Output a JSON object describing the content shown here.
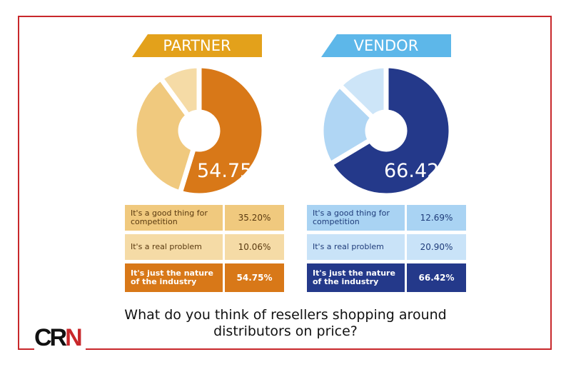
{
  "title": "What do you think of resellers shopping around distributors on price?",
  "logo": "CRN",
  "chart_data": [
    {
      "type": "pie",
      "title": "PARTNER",
      "center_label": "54.75",
      "center_unit": "%",
      "slices": [
        {
          "label": "It's just the nature of the industry",
          "value": 54.75,
          "display": "54.75%",
          "color": "#d87818"
        },
        {
          "label": "It's a good thing for competition",
          "value": 35.2,
          "display": "35.20%",
          "color": "#f0c97e"
        },
        {
          "label": "It's a real problem",
          "value": 10.06,
          "display": "10.06%",
          "color": "#f5dba6"
        }
      ],
      "header_color": "#e3a11b"
    },
    {
      "type": "pie",
      "title": "VENDOR",
      "center_label": "66.42",
      "center_unit": "%",
      "slices": [
        {
          "label": "It's just the nature of the industry",
          "value": 66.42,
          "display": "66.42%",
          "color": "#24398a"
        },
        {
          "label": "It's a real problem",
          "value": 20.9,
          "display": "20.90%",
          "color": "#b0d6f4"
        },
        {
          "label": "It's a good thing for competition",
          "value": 12.69,
          "display": "12.69%",
          "color": "#cde5f8"
        }
      ],
      "header_color": "#5db7e9"
    }
  ],
  "tables": [
    {
      "rows": [
        {
          "label": "It's a good thing for competition",
          "value": "35.20%",
          "color": "#f0c97e"
        },
        {
          "label": "It's a real problem",
          "value": "10.06%",
          "color": "#f5dba6"
        },
        {
          "label": "It's just the nature of the industry",
          "value": "54.75%",
          "color": "#d87818"
        }
      ]
    },
    {
      "rows": [
        {
          "label": "It's a good thing for competition",
          "value": "12.69%",
          "color": "#a9d3f3"
        },
        {
          "label": "It's a real problem",
          "value": "20.90%",
          "color": "#c9e3f8"
        },
        {
          "label": "It's just the nature of the industry",
          "value": "66.42%",
          "color": "#24398a"
        }
      ]
    }
  ]
}
